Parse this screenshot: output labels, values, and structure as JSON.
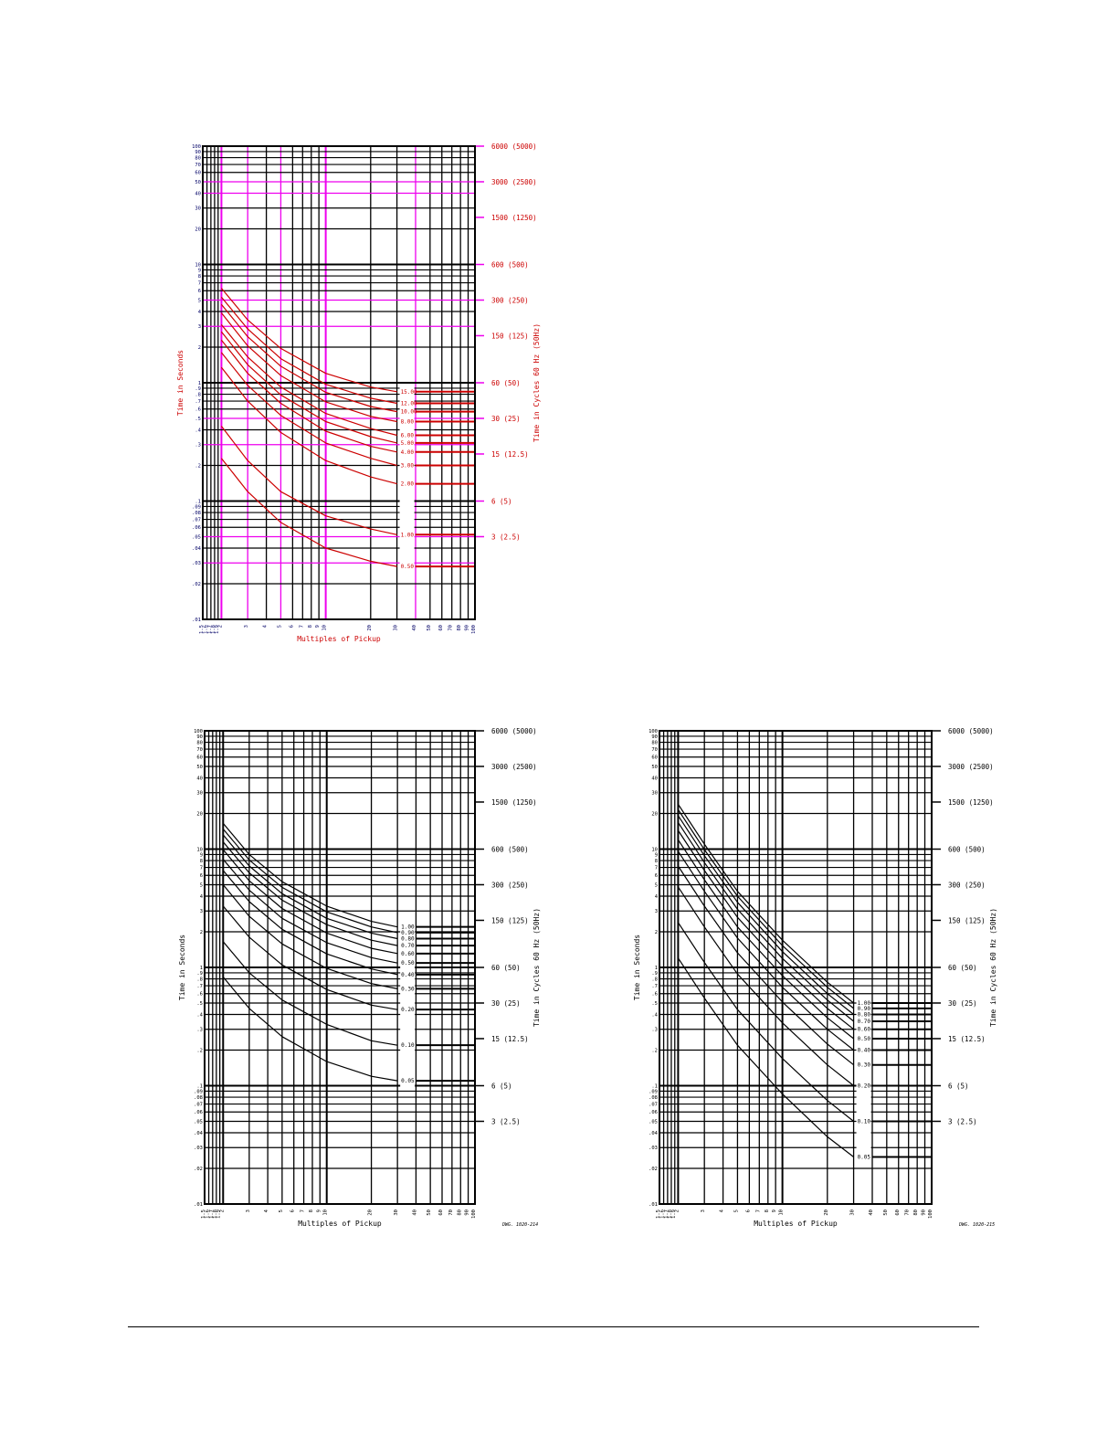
{
  "charts": [
    {
      "id": "chart-top",
      "style": "color",
      "title": "",
      "xlabel": "Multiples of Pickup",
      "ylabel": "Time in Seconds",
      "y2label": "Time in Cycles 60 Hz (50Hz)",
      "dwg": "",
      "xtick_labels": [
        "1.5",
        "1.6",
        "1.7",
        "1.8",
        "1.9",
        "2",
        "3",
        "4",
        "5",
        "6",
        "7",
        "8",
        "9",
        "10",
        "20",
        "30",
        "40",
        "50",
        "60",
        "70",
        "80",
        "90",
        "100"
      ],
      "ytick_labels": [
        "100",
        "90",
        "80",
        "70",
        "60",
        "50",
        "40",
        "30",
        "20",
        "10",
        "9",
        "8",
        "7",
        "6",
        "5",
        "4",
        "3",
        "2",
        "1",
        ".9",
        ".8",
        ".7",
        ".6",
        ".5",
        ".4",
        ".3",
        ".2",
        ".1",
        ".09",
        ".08",
        ".07",
        ".06",
        ".05",
        ".04",
        ".03",
        ".02",
        ".01"
      ],
      "cycle_labels": [
        "6000 (5000)",
        "3000 (2500)",
        "1500 (1250)",
        "600 (500)",
        "300 (250)",
        "150 (125)",
        "60 (50)",
        "30 (25)",
        "15 (12.5)",
        "6 (5)",
        "3 (2.5)"
      ],
      "curve_labels": [
        "15.00",
        "12.00",
        "10.00",
        "8.00",
        "6.00",
        "5.00",
        "4.00",
        "3.00",
        "2.00",
        "1.00",
        "0.50"
      ],
      "colors": {
        "grid": "#000000",
        "grid_alt": "#ee00ee",
        "curve": "#cc0000",
        "text": "#cc0000",
        "axis_text": "#000066"
      }
    },
    {
      "id": "chart-bottom-left",
      "style": "mono",
      "title": "",
      "xlabel": "Multiples of Pickup",
      "ylabel": "Time in Seconds",
      "y2label": "Time in Cycles 60 Hz (50Hz)",
      "dwg": "DWG. 1020-214",
      "xtick_labels": [
        "1.5",
        "1.6",
        "1.7",
        "1.8",
        "1.9",
        "2",
        "3",
        "4",
        "5",
        "6",
        "7",
        "8",
        "9",
        "10",
        "20",
        "30",
        "40",
        "50",
        "60",
        "70",
        "80",
        "90",
        "100"
      ],
      "ytick_labels": [
        "100",
        "90",
        "80",
        "70",
        "60",
        "50",
        "40",
        "30",
        "20",
        "10",
        "9",
        "8",
        "7",
        "6",
        "5",
        "4",
        "3",
        "2",
        "1",
        ".9",
        ".8",
        ".7",
        ".6",
        ".5",
        ".4",
        ".3",
        ".2",
        ".1",
        ".09",
        ".08",
        ".07",
        ".06",
        ".05",
        ".04",
        ".03",
        ".02",
        ".01"
      ],
      "cycle_labels": [
        "6000 (5000)",
        "3000 (2500)",
        "1500 (1250)",
        "600 (500)",
        "300 (250)",
        "150 (125)",
        "60 (50)",
        "30 (25)",
        "15 (12.5)",
        "6 (5)",
        "3 (2.5)"
      ],
      "curve_labels": [
        "1.00",
        "0.90",
        "0.80",
        "0.70",
        "0.60",
        "0.50",
        "0.40",
        "0.30",
        "0.20",
        "0.10",
        "0.05"
      ],
      "colors": {
        "grid": "#000000",
        "grid_alt": "#000000",
        "curve": "#000000",
        "text": "#000000",
        "axis_text": "#000000"
      }
    },
    {
      "id": "chart-bottom-right",
      "style": "mono",
      "title": "",
      "xlabel": "Multiples of Pickup",
      "ylabel": "Time in Seconds",
      "y2label": "Time in Cycles 60 Hz (50Hz)",
      "dwg": "DWG. 1020-215",
      "xtick_labels": [
        "1.5",
        "1.6",
        "1.7",
        "1.8",
        "1.9",
        "2",
        "3",
        "4",
        "5",
        "6",
        "7",
        "8",
        "9",
        "10",
        "20",
        "30",
        "40",
        "50",
        "60",
        "70",
        "80",
        "90",
        "100"
      ],
      "ytick_labels": [
        "100",
        "90",
        "80",
        "70",
        "60",
        "50",
        "40",
        "30",
        "20",
        "10",
        "9",
        "8",
        "7",
        "6",
        "5",
        "4",
        "3",
        "2",
        "1",
        ".9",
        ".8",
        ".7",
        ".6",
        ".5",
        ".4",
        ".3",
        ".2",
        ".1",
        ".09",
        ".08",
        ".07",
        ".06",
        ".05",
        ".04",
        ".03",
        ".02",
        ".01"
      ],
      "cycle_labels": [
        "6000 (5000)",
        "3000 (2500)",
        "1500 (1250)",
        "600 (500)",
        "300 (250)",
        "150 (125)",
        "60 (50)",
        "30 (25)",
        "15 (12.5)",
        "6 (5)",
        "3 (2.5)"
      ],
      "curve_labels": [
        "1.00",
        "0.90",
        "0.80",
        "0.70",
        "0.60",
        "0.50",
        "0.40",
        "0.30",
        "0.20",
        "0.10",
        "0.05"
      ],
      "colors": {
        "grid": "#000000",
        "grid_alt": "#000000",
        "curve": "#000000",
        "text": "#000000",
        "axis_text": "#000000"
      }
    }
  ],
  "chart_data": [
    {
      "type": "line",
      "x_scale": "log",
      "y_scale": "log",
      "xlim": [
        1.5,
        100
      ],
      "ylim": [
        0.01,
        100
      ],
      "xlabel": "Multiples of Pickup",
      "ylabel": "Time in Seconds",
      "y2label": "Time in Cycles 60 Hz (50Hz)",
      "grid": true,
      "x": [
        2,
        3,
        5,
        10,
        20,
        30
      ],
      "series": [
        {
          "name": "15.00",
          "values": [
            6.3,
            3.4,
            1.95,
            1.2,
            0.92,
            0.84
          ]
        },
        {
          "name": "12.00",
          "values": [
            5.3,
            2.85,
            1.6,
            0.97,
            0.74,
            0.67
          ]
        },
        {
          "name": "10.00",
          "values": [
            4.6,
            2.45,
            1.38,
            0.83,
            0.63,
            0.57
          ]
        },
        {
          "name": "8.00",
          "values": [
            3.9,
            2.05,
            1.15,
            0.69,
            0.52,
            0.47
          ]
        },
        {
          "name": "6.00",
          "values": [
            3.1,
            1.65,
            0.92,
            0.55,
            0.41,
            0.36
          ]
        },
        {
          "name": "5.00",
          "values": [
            2.7,
            1.42,
            0.79,
            0.47,
            0.35,
            0.31
          ]
        },
        {
          "name": "4.00",
          "values": [
            2.3,
            1.2,
            0.67,
            0.39,
            0.29,
            0.26
          ]
        },
        {
          "name": "3.00",
          "values": [
            1.8,
            0.95,
            0.53,
            0.31,
            0.23,
            0.2
          ]
        },
        {
          "name": "2.00",
          "values": [
            1.35,
            0.7,
            0.38,
            0.22,
            0.16,
            0.14
          ]
        },
        {
          "name": "1.00",
          "values": [
            0.43,
            0.22,
            0.12,
            0.075,
            0.058,
            0.052
          ]
        },
        {
          "name": "0.50",
          "values": [
            0.23,
            0.12,
            0.066,
            0.04,
            0.031,
            0.028
          ]
        }
      ]
    },
    {
      "type": "line",
      "x_scale": "log",
      "y_scale": "log",
      "xlim": [
        1.5,
        100
      ],
      "ylim": [
        0.01,
        100
      ],
      "xlabel": "Multiples of Pickup",
      "ylabel": "Time in Seconds",
      "y2label": "Time in Cycles 60 Hz (50Hz)",
      "grid": true,
      "x": [
        2,
        3,
        5,
        10,
        20,
        30
      ],
      "series": [
        {
          "name": "1.00",
          "values": [
            16.5,
            9.0,
            5.3,
            3.3,
            2.45,
            2.2
          ]
        },
        {
          "name": "0.90",
          "values": [
            14.8,
            8.1,
            4.75,
            2.95,
            2.2,
            1.97
          ]
        },
        {
          "name": "0.80",
          "values": [
            13.2,
            7.2,
            4.2,
            2.6,
            1.95,
            1.75
          ]
        },
        {
          "name": "0.70",
          "values": [
            11.5,
            6.3,
            3.7,
            2.3,
            1.7,
            1.53
          ]
        },
        {
          "name": "0.60",
          "values": [
            9.9,
            5.4,
            3.15,
            1.95,
            1.45,
            1.31
          ]
        },
        {
          "name": "0.50",
          "values": [
            8.2,
            4.5,
            2.6,
            1.62,
            1.21,
            1.09
          ]
        },
        {
          "name": "0.40",
          "values": [
            6.6,
            3.6,
            2.1,
            1.3,
            0.97,
            0.87
          ]
        },
        {
          "name": "0.30",
          "values": [
            5.0,
            2.7,
            1.58,
            0.98,
            0.73,
            0.66
          ]
        },
        {
          "name": "0.20",
          "values": [
            3.3,
            1.8,
            1.05,
            0.65,
            0.48,
            0.44
          ]
        },
        {
          "name": "0.10",
          "values": [
            1.65,
            0.9,
            0.53,
            0.33,
            0.24,
            0.22
          ]
        },
        {
          "name": "0.05",
          "values": [
            0.83,
            0.45,
            0.26,
            0.16,
            0.12,
            0.11
          ]
        }
      ]
    },
    {
      "type": "line",
      "x_scale": "log",
      "y_scale": "log",
      "xlim": [
        1.5,
        100
      ],
      "ylim": [
        0.01,
        100
      ],
      "xlabel": "Multiples of Pickup",
      "ylabel": "Time in Seconds",
      "y2label": "Time in Cycles 60 Hz (50Hz)",
      "grid": true,
      "x": [
        2,
        3,
        5,
        10,
        20,
        30
      ],
      "series": [
        {
          "name": "1.00",
          "values": [
            24,
            11,
            4.4,
            1.7,
            0.75,
            0.5
          ]
        },
        {
          "name": "0.90",
          "values": [
            21.6,
            9.9,
            4.0,
            1.53,
            0.68,
            0.45
          ]
        },
        {
          "name": "0.80",
          "values": [
            19.2,
            8.8,
            3.55,
            1.36,
            0.6,
            0.4
          ]
        },
        {
          "name": "0.70",
          "values": [
            16.8,
            7.7,
            3.1,
            1.19,
            0.53,
            0.35
          ]
        },
        {
          "name": "0.60",
          "values": [
            14.4,
            6.6,
            2.65,
            1.02,
            0.45,
            0.3
          ]
        },
        {
          "name": "0.50",
          "values": [
            12.0,
            5.5,
            2.2,
            0.85,
            0.375,
            0.25
          ]
        },
        {
          "name": "0.40",
          "values": [
            9.6,
            4.4,
            1.77,
            0.68,
            0.3,
            0.2
          ]
        },
        {
          "name": "0.30",
          "values": [
            7.2,
            3.3,
            1.33,
            0.51,
            0.225,
            0.15
          ]
        },
        {
          "name": "0.20",
          "values": [
            4.8,
            2.2,
            0.88,
            0.34,
            0.15,
            0.1
          ]
        },
        {
          "name": "0.10",
          "values": [
            2.4,
            1.1,
            0.44,
            0.17,
            0.075,
            0.05
          ]
        },
        {
          "name": "0.05",
          "values": [
            1.2,
            0.55,
            0.22,
            0.085,
            0.037,
            0.025
          ]
        }
      ]
    }
  ]
}
